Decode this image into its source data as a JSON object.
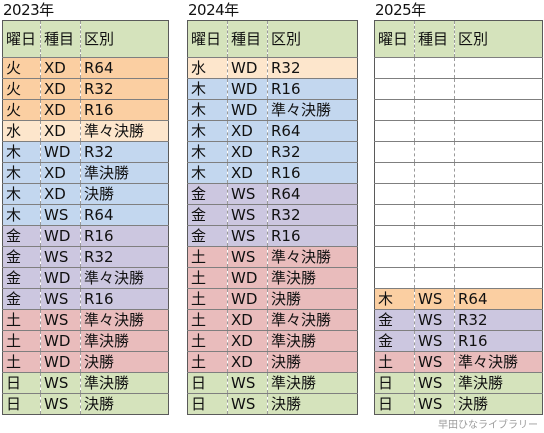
{
  "headers": [
    "曜日",
    "種目",
    "区別"
  ],
  "colors": {
    "orange": "#fbcfa2",
    "cream": "#fde6cc",
    "blue": "#c3d7ef",
    "lavender": "#ccc7e0",
    "pink": "#e9bcbc",
    "green": "#d5e3bc",
    "white": "#ffffff"
  },
  "tables": [
    {
      "year": "2023年",
      "rows": [
        {
          "day": "火",
          "event": "XD",
          "round": "R64",
          "color": "#fbcfa2"
        },
        {
          "day": "火",
          "event": "XD",
          "round": "R32",
          "color": "#fbcfa2"
        },
        {
          "day": "火",
          "event": "XD",
          "round": "R16",
          "color": "#fbcfa2"
        },
        {
          "day": "水",
          "event": "XD",
          "round": "準々決勝",
          "color": "#fde6cc"
        },
        {
          "day": "木",
          "event": "WD",
          "round": "R32",
          "color": "#c3d7ef"
        },
        {
          "day": "木",
          "event": "XD",
          "round": "準決勝",
          "color": "#c3d7ef"
        },
        {
          "day": "木",
          "event": "XD",
          "round": "決勝",
          "color": "#c3d7ef"
        },
        {
          "day": "木",
          "event": "WS",
          "round": "R64",
          "color": "#c3d7ef"
        },
        {
          "day": "金",
          "event": "WD",
          "round": "R16",
          "color": "#ccc7e0"
        },
        {
          "day": "金",
          "event": "WS",
          "round": "R32",
          "color": "#ccc7e0"
        },
        {
          "day": "金",
          "event": "WD",
          "round": "準々決勝",
          "color": "#ccc7e0"
        },
        {
          "day": "金",
          "event": "WS",
          "round": "R16",
          "color": "#ccc7e0"
        },
        {
          "day": "土",
          "event": "WS",
          "round": "準々決勝",
          "color": "#e9bcbc"
        },
        {
          "day": "土",
          "event": "WD",
          "round": "準決勝",
          "color": "#e9bcbc"
        },
        {
          "day": "土",
          "event": "WD",
          "round": "決勝",
          "color": "#e9bcbc"
        },
        {
          "day": "日",
          "event": "WS",
          "round": "準決勝",
          "color": "#d5e3bc"
        },
        {
          "day": "日",
          "event": "WS",
          "round": "決勝",
          "color": "#d5e3bc"
        }
      ]
    },
    {
      "year": "2024年",
      "rows": [
        {
          "day": "水",
          "event": "WD",
          "round": "R32",
          "color": "#fde6cc"
        },
        {
          "day": "木",
          "event": "WD",
          "round": "R16",
          "color": "#c3d7ef"
        },
        {
          "day": "木",
          "event": "WD",
          "round": "準々決勝",
          "color": "#c3d7ef"
        },
        {
          "day": "木",
          "event": "XD",
          "round": "R64",
          "color": "#c3d7ef"
        },
        {
          "day": "木",
          "event": "XD",
          "round": "R32",
          "color": "#c3d7ef"
        },
        {
          "day": "木",
          "event": "XD",
          "round": "R16",
          "color": "#c3d7ef"
        },
        {
          "day": "金",
          "event": "WS",
          "round": "R64",
          "color": "#ccc7e0"
        },
        {
          "day": "金",
          "event": "WS",
          "round": "R32",
          "color": "#ccc7e0"
        },
        {
          "day": "金",
          "event": "WS",
          "round": "R16",
          "color": "#ccc7e0"
        },
        {
          "day": "土",
          "event": "WS",
          "round": "準々決勝",
          "color": "#e9bcbc"
        },
        {
          "day": "土",
          "event": "WD",
          "round": "準決勝",
          "color": "#e9bcbc"
        },
        {
          "day": "土",
          "event": "WD",
          "round": "決勝",
          "color": "#e9bcbc"
        },
        {
          "day": "土",
          "event": "XD",
          "round": "準々決勝",
          "color": "#e9bcbc"
        },
        {
          "day": "土",
          "event": "XD",
          "round": "準決勝",
          "color": "#e9bcbc"
        },
        {
          "day": "土",
          "event": "XD",
          "round": "決勝",
          "color": "#e9bcbc"
        },
        {
          "day": "日",
          "event": "WS",
          "round": "準決勝",
          "color": "#d5e3bc"
        },
        {
          "day": "日",
          "event": "WS",
          "round": "決勝",
          "color": "#d5e3bc"
        }
      ]
    },
    {
      "year": "2025年",
      "rows": [
        {
          "day": "",
          "event": "",
          "round": "",
          "color": "#ffffff"
        },
        {
          "day": "",
          "event": "",
          "round": "",
          "color": "#ffffff"
        },
        {
          "day": "",
          "event": "",
          "round": "",
          "color": "#ffffff"
        },
        {
          "day": "",
          "event": "",
          "round": "",
          "color": "#ffffff"
        },
        {
          "day": "",
          "event": "",
          "round": "",
          "color": "#ffffff"
        },
        {
          "day": "",
          "event": "",
          "round": "",
          "color": "#ffffff"
        },
        {
          "day": "",
          "event": "",
          "round": "",
          "color": "#ffffff"
        },
        {
          "day": "",
          "event": "",
          "round": "",
          "color": "#ffffff"
        },
        {
          "day": "",
          "event": "",
          "round": "",
          "color": "#ffffff"
        },
        {
          "day": "",
          "event": "",
          "round": "",
          "color": "#ffffff"
        },
        {
          "day": "",
          "event": "",
          "round": "",
          "color": "#ffffff"
        },
        {
          "day": "木",
          "event": "WS",
          "round": "R64",
          "color": "#fbcfa2"
        },
        {
          "day": "金",
          "event": "WS",
          "round": "R32",
          "color": "#ccc7e0"
        },
        {
          "day": "金",
          "event": "WS",
          "round": "R16",
          "color": "#ccc7e0"
        },
        {
          "day": "土",
          "event": "WS",
          "round": "準々決勝",
          "color": "#e9bcbc"
        },
        {
          "day": "日",
          "event": "WS",
          "round": "準決勝",
          "color": "#d5e3bc"
        },
        {
          "day": "日",
          "event": "WS",
          "round": "決勝",
          "color": "#d5e3bc"
        }
      ]
    }
  ],
  "watermark": "早田ひなライブラリー"
}
